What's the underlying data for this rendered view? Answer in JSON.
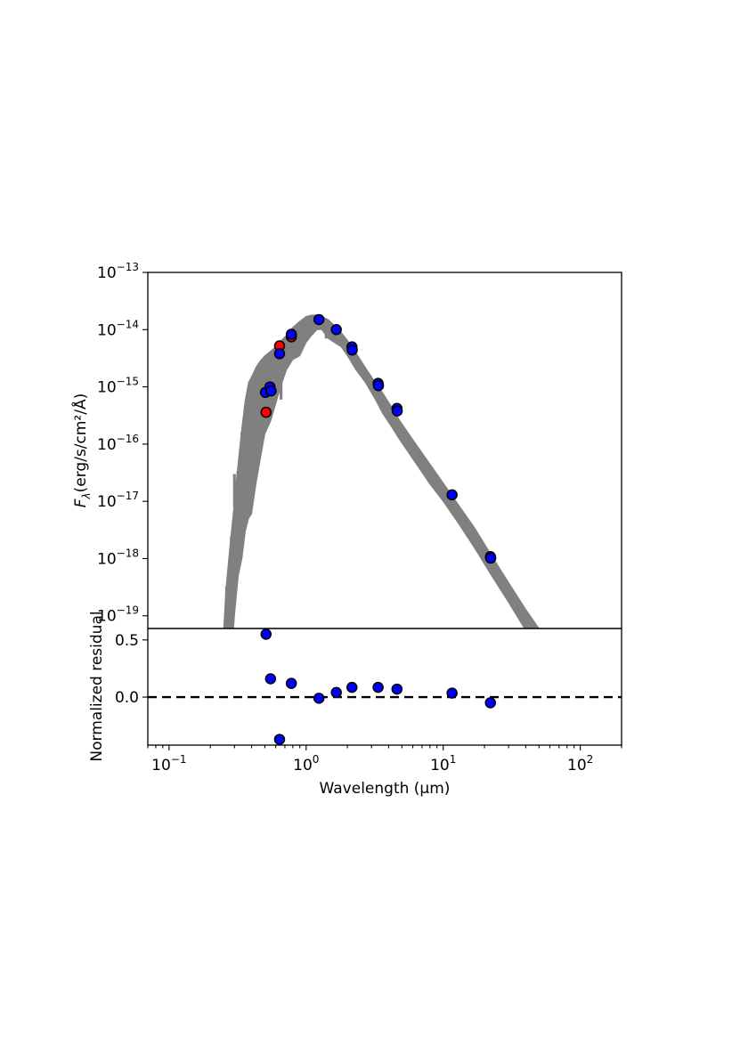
{
  "chart_data": [
    {
      "type": "scatter",
      "panel": "sed",
      "xlabel": "",
      "ylabel": "F",
      "ylabel_sub": "λ",
      "ylabel_units": "(erg/s/cm²/Å)",
      "xscale": "log",
      "yscale": "log",
      "xlim": [
        0.07,
        200
      ],
      "ylim": [
        6e-20,
        1e-13
      ],
      "y_ticks": [
        {
          "value": 1e-13,
          "base": "10",
          "exp": "−13"
        },
        {
          "value": 1e-14,
          "base": "10",
          "exp": "−14"
        },
        {
          "value": 1e-15,
          "base": "10",
          "exp": "−15"
        },
        {
          "value": 1e-16,
          "base": "10",
          "exp": "−16"
        },
        {
          "value": 1e-17,
          "base": "10",
          "exp": "−17"
        },
        {
          "value": 1e-18,
          "base": "10",
          "exp": "−18"
        },
        {
          "value": 1e-19,
          "base": "10",
          "exp": "−19"
        }
      ],
      "model": {
        "color": "#808080",
        "envelope_x": [
          0.24,
          0.26,
          0.28,
          0.3,
          0.32,
          0.34,
          0.36,
          0.38,
          0.4,
          0.43,
          0.46,
          0.5,
          0.55,
          0.6,
          0.66,
          0.72,
          0.8,
          0.9,
          1.0,
          1.1,
          1.2,
          1.3,
          1.45,
          1.6,
          1.8,
          2.0,
          2.3,
          2.7,
          3.2,
          3.6,
          4.2,
          4.8,
          6.0,
          8.0,
          10.0,
          13.0,
          17.0,
          22.0,
          30.0,
          40.0,
          50.0,
          60.0,
          64.0
        ],
        "envelope_upper": [
          1e-20,
          3e-19,
          2e-18,
          1e-17,
          5e-17,
          2e-16,
          6e-16,
          1.2e-15,
          1.5e-15,
          2.2e-15,
          2.8e-15,
          3.5e-15,
          4.2e-15,
          5e-15,
          6.5e-15,
          8e-15,
          1.1e-14,
          1.4e-14,
          1.7e-14,
          1.8e-14,
          1.8e-14,
          1.7e-14,
          1.5e-14,
          1.2e-14,
          9e-15,
          6.5e-15,
          4e-15,
          2.2e-15,
          1.2e-15,
          8e-16,
          4.5e-16,
          2.6e-16,
          1.2e-16,
          4.5e-17,
          2.1e-17,
          8.5e-18,
          3.4e-18,
          1.25e-18,
          3.8e-19,
          1.3e-19,
          6e-20,
          3.2e-20,
          2.5e-20
        ],
        "envelope_lower": [
          1e-21,
          1e-20,
          1e-20,
          1e-19,
          5e-19,
          1e-18,
          3e-18,
          5e-18,
          6e-18,
          2e-17,
          5e-17,
          1.5e-16,
          2.5e-16,
          5e-16,
          1.1e-15,
          2e-15,
          3e-15,
          3.5e-15,
          6e-15,
          8e-15,
          1e-14,
          1e-14,
          7e-15,
          6e-15,
          5e-15,
          3.5e-15,
          2e-15,
          1.2e-15,
          6e-16,
          3.5e-16,
          2e-16,
          1.2e-16,
          5.5e-17,
          2e-17,
          1e-17,
          4e-18,
          1.5e-18,
          5.5e-19,
          1.7e-19,
          5.5e-20,
          2.5e-20,
          1.3e-20,
          1e-20
        ],
        "absorption_lines": [
          {
            "x": 0.245,
            "y_min": 6e-20
          },
          {
            "x": 0.263,
            "y_min": 1e-19
          },
          {
            "x": 0.285,
            "y_min": 6e-20
          },
          {
            "x": 0.3,
            "y_min": 3e-17
          },
          {
            "x": 0.308,
            "y_min": 4e-18
          },
          {
            "x": 0.318,
            "y_min": 6e-18
          },
          {
            "x": 0.34,
            "y_min": 8e-18
          },
          {
            "x": 0.36,
            "y_min": 5e-17
          },
          {
            "x": 0.39,
            "y_min": 1e-17
          },
          {
            "x": 0.41,
            "y_min": 2e-17
          },
          {
            "x": 0.43,
            "y_min": 4e-17
          },
          {
            "x": 0.47,
            "y_min": 1e-16
          },
          {
            "x": 0.49,
            "y_min": 6e-16
          },
          {
            "x": 0.517,
            "y_min": 4e-16
          },
          {
            "x": 0.59,
            "y_min": 1e-15
          },
          {
            "x": 0.656,
            "y_min": 6e-16
          },
          {
            "x": 0.7,
            "y_min": 2e-15
          },
          {
            "x": 0.76,
            "y_min": 3e-15
          },
          {
            "x": 0.86,
            "y_min": 4e-15
          },
          {
            "x": 0.93,
            "y_min": 7e-15
          },
          {
            "x": 1.0,
            "y_min": 8e-15
          },
          {
            "x": 1.13,
            "y_min": 9e-15
          },
          {
            "x": 1.4,
            "y_min": 7e-15
          },
          {
            "x": 1.9,
            "y_min": 5e-15
          },
          {
            "x": 2.3,
            "y_min": 2.5e-15
          },
          {
            "x": 2.8,
            "y_min": 1.3e-15
          }
        ]
      },
      "series": [
        {
          "name": "",
          "color": "#ff0000",
          "points": [
            {
              "x": 0.51,
              "y": 3.6e-16
            },
            {
              "x": 0.64,
              "y": 5.2e-15
            },
            {
              "x": 0.78,
              "y": 7.5e-15
            }
          ]
        },
        {
          "name": "",
          "color": "#0000ff",
          "points": [
            {
              "x": 0.505,
              "y": 8e-16
            },
            {
              "x": 0.545,
              "y": 1e-15
            },
            {
              "x": 0.555,
              "y": 8.5e-16
            },
            {
              "x": 0.64,
              "y": 3.8e-15
            },
            {
              "x": 0.78,
              "y": 8.3e-15
            },
            {
              "x": 1.24,
              "y": 1.5e-14
            },
            {
              "x": 1.66,
              "y": 1e-14
            },
            {
              "x": 2.16,
              "y": 5e-15
            },
            {
              "x": 2.17,
              "y": 4.4e-15
            },
            {
              "x": 3.35,
              "y": 1.15e-15
            },
            {
              "x": 3.37,
              "y": 1.05e-15
            },
            {
              "x": 4.6,
              "y": 4.2e-16
            },
            {
              "x": 4.62,
              "y": 3.8e-16
            },
            {
              "x": 11.6,
              "y": 1.3e-17
            },
            {
              "x": 22.1,
              "y": 1.08e-18
            },
            {
              "x": 22.2,
              "y": 1.02e-18
            }
          ]
        }
      ]
    },
    {
      "type": "scatter",
      "panel": "residual",
      "xlabel": "Wavelength (μm)",
      "ylabel": "Normalized residual",
      "xscale": "log",
      "xlim": [
        0.07,
        200
      ],
      "ylim": [
        -0.42,
        0.6
      ],
      "x_ticks": [
        {
          "value": 0.1,
          "base": "10",
          "exp": "−1"
        },
        {
          "value": 1,
          "base": "10",
          "exp": "0"
        },
        {
          "value": 10,
          "base": "10",
          "exp": "1"
        },
        {
          "value": 100,
          "base": "10",
          "exp": "2"
        }
      ],
      "y_ticks": [
        {
          "value": 0.5,
          "label": "0.5"
        },
        {
          "value": 0.0,
          "label": "0.0"
        }
      ],
      "zero_line": {
        "y": 0.0,
        "style": "dashed",
        "color": "#000000"
      },
      "series": [
        {
          "name": "",
          "color": "#0000ff",
          "points": [
            {
              "x": 0.51,
              "y": 0.55
            },
            {
              "x": 0.55,
              "y": 0.16
            },
            {
              "x": 0.64,
              "y": -0.37
            },
            {
              "x": 0.78,
              "y": 0.12
            },
            {
              "x": 1.24,
              "y": -0.01
            },
            {
              "x": 1.66,
              "y": 0.04
            },
            {
              "x": 2.16,
              "y": 0.085
            },
            {
              "x": 3.35,
              "y": 0.085
            },
            {
              "x": 4.6,
              "y": 0.07
            },
            {
              "x": 11.6,
              "y": 0.035
            },
            {
              "x": 22.1,
              "y": -0.05
            }
          ]
        }
      ]
    }
  ]
}
